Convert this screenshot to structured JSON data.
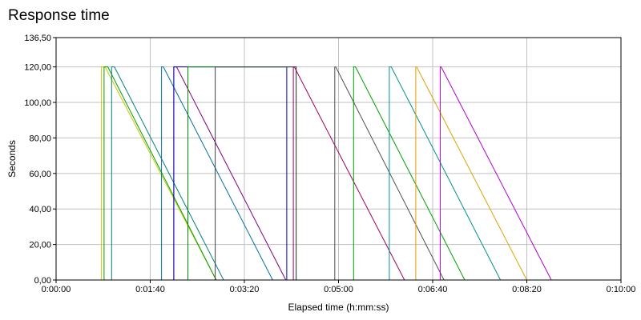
{
  "chart_data": {
    "type": "line",
    "title": "Response time",
    "xlabel": "Elapsed time (h:mm:ss)",
    "ylabel": "Seconds",
    "xlim": [
      0,
      600
    ],
    "ylim": [
      0,
      136.5
    ],
    "grid": true,
    "x_ticks": [
      {
        "value": 0,
        "label": "0:00:00"
      },
      {
        "value": 100,
        "label": "0:01:40"
      },
      {
        "value": 200,
        "label": "0:03:20"
      },
      {
        "value": 300,
        "label": "0:05:00"
      },
      {
        "value": 400,
        "label": "0:06:40"
      },
      {
        "value": 500,
        "label": "0:08:20"
      },
      {
        "value": 600,
        "label": "0:10:00"
      }
    ],
    "y_ticks": [
      {
        "value": 0,
        "label": "0,00"
      },
      {
        "value": 20,
        "label": "20,00"
      },
      {
        "value": 40,
        "label": "40,00"
      },
      {
        "value": 60,
        "label": "60,00"
      },
      {
        "value": 80,
        "label": "80,00"
      },
      {
        "value": 100,
        "label": "100,00"
      },
      {
        "value": 120,
        "label": "120,00"
      },
      {
        "value": 136.5,
        "label": "136,50"
      }
    ],
    "series": [
      {
        "color": "#c8c800",
        "x": [
          32,
          48,
          48,
          52,
          52,
          170,
          170,
          600
        ],
        "y": [
          0,
          0,
          120,
          120,
          120,
          0,
          0,
          0
        ]
      },
      {
        "color": "#00a000",
        "x": [
          32,
          51,
          51,
          55,
          55,
          170,
          600
        ],
        "y": [
          0,
          0,
          120,
          120,
          120,
          0,
          0
        ]
      },
      {
        "color": "#008080",
        "x": [
          32,
          59,
          59,
          62,
          62,
          178,
          600
        ],
        "y": [
          0,
          0,
          120,
          120,
          120,
          0,
          0
        ]
      },
      {
        "color": "#0070a0",
        "x": [
          32,
          112,
          112,
          114,
          114,
          230,
          600
        ],
        "y": [
          0,
          0,
          120,
          120,
          120,
          0,
          0
        ]
      },
      {
        "color": "#800080",
        "x": [
          32,
          125,
          125,
          128,
          128,
          244,
          600
        ],
        "y": [
          0,
          0,
          120,
          120,
          120,
          0,
          0
        ]
      },
      {
        "color": "#0000c0",
        "x": [
          32,
          125,
          125,
          245,
          245,
          600
        ],
        "y": [
          0,
          0,
          120,
          120,
          0,
          0
        ]
      },
      {
        "color": "#009000",
        "x": [
          32,
          140,
          140,
          255,
          255,
          600
        ],
        "y": [
          0,
          0,
          120,
          120,
          0,
          0
        ]
      },
      {
        "color": "#404040",
        "x": [
          32,
          169,
          169,
          255,
          255,
          600
        ],
        "y": [
          0,
          0,
          120,
          120,
          0,
          0
        ]
      },
      {
        "color": "#a00060",
        "x": [
          32,
          252,
          252,
          253,
          253,
          370,
          600
        ],
        "y": [
          0,
          0,
          120,
          120,
          120,
          0,
          0
        ]
      },
      {
        "color": "#505050",
        "x": [
          32,
          296,
          296,
          297,
          297,
          412,
          600
        ],
        "y": [
          0,
          0,
          120,
          120,
          120,
          0,
          0
        ]
      },
      {
        "color": "#00a000",
        "x": [
          32,
          316,
          316,
          318,
          318,
          434,
          600
        ],
        "y": [
          0,
          0,
          120,
          120,
          120,
          0,
          0
        ]
      },
      {
        "color": "#009090",
        "x": [
          32,
          354,
          354,
          356,
          356,
          472,
          600
        ],
        "y": [
          0,
          0,
          120,
          120,
          120,
          0,
          0
        ]
      },
      {
        "color": "#e0a000",
        "x": [
          32,
          382,
          382,
          383,
          383,
          500,
          600
        ],
        "y": [
          0,
          0,
          120,
          120,
          120,
          0,
          0
        ]
      },
      {
        "color": "#b000d0",
        "x": [
          32,
          408,
          408,
          409,
          409,
          526,
          600
        ],
        "y": [
          0,
          0,
          120,
          120,
          120,
          0,
          0
        ]
      }
    ]
  }
}
